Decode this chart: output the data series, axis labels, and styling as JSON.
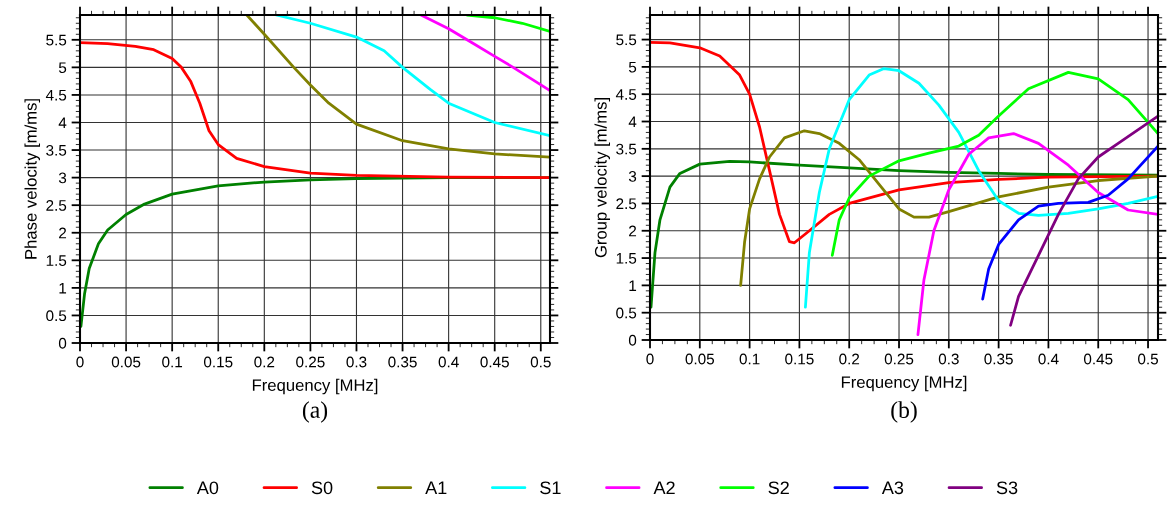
{
  "chart_data": [
    {
      "type": "line",
      "xlabel": "Frequency [MHz]",
      "ylabel": "Phase velocity [m/ms]",
      "annotations": [
        "(a)"
      ],
      "xlim": [
        0,
        0.51
      ],
      "ylim": [
        0,
        5.95
      ],
      "xticks": [
        0,
        0.05,
        0.1,
        0.15,
        0.2,
        0.25,
        0.3,
        0.35,
        0.4,
        0.45,
        0.5
      ],
      "yticks": [
        0,
        0.5,
        1,
        1.5,
        2,
        2.5,
        3,
        3.5,
        4,
        4.5,
        5,
        5.5
      ],
      "grid": true,
      "legend": "bottom",
      "marker": "none",
      "line_style": "solid",
      "series": [
        {
          "name": "A0",
          "color": "#008000",
          "x": [
            0.001,
            0.005,
            0.01,
            0.02,
            0.03,
            0.05,
            0.07,
            0.1,
            0.15,
            0.2,
            0.25,
            0.3,
            0.35,
            0.4,
            0.51
          ],
          "values": [
            0.3,
            0.9,
            1.35,
            1.8,
            2.05,
            2.33,
            2.52,
            2.7,
            2.85,
            2.92,
            2.96,
            2.98,
            2.99,
            3.0,
            3.0
          ]
        },
        {
          "name": "S0",
          "color": "#ff0000",
          "x": [
            0,
            0.03,
            0.06,
            0.08,
            0.1,
            0.11,
            0.12,
            0.13,
            0.14,
            0.15,
            0.17,
            0.2,
            0.25,
            0.3,
            0.4,
            0.51
          ],
          "values": [
            5.45,
            5.43,
            5.38,
            5.32,
            5.16,
            5.0,
            4.75,
            4.35,
            3.85,
            3.6,
            3.35,
            3.2,
            3.08,
            3.04,
            3.01,
            3.0
          ]
        },
        {
          "name": "A1",
          "color": "#808000",
          "x": [
            0.181,
            0.2,
            0.232,
            0.25,
            0.27,
            0.3,
            0.35,
            0.4,
            0.45,
            0.51
          ],
          "values": [
            5.95,
            5.6,
            5.0,
            4.68,
            4.35,
            3.97,
            3.67,
            3.52,
            3.43,
            3.37
          ]
        },
        {
          "name": "S1",
          "color": "#00ffff",
          "x": [
            0.213,
            0.25,
            0.3,
            0.33,
            0.35,
            0.38,
            0.4,
            0.45,
            0.51
          ],
          "values": [
            5.95,
            5.8,
            5.55,
            5.3,
            5.0,
            4.6,
            4.35,
            4.0,
            3.76
          ]
        },
        {
          "name": "A2",
          "color": "#ff00ff",
          "x": [
            0.37,
            0.4,
            0.425,
            0.45,
            0.47,
            0.51
          ],
          "values": [
            5.95,
            5.7,
            5.45,
            5.2,
            5.0,
            4.58
          ]
        },
        {
          "name": "S2",
          "color": "#00ff00",
          "x": [
            0.42,
            0.45,
            0.48,
            0.51
          ],
          "values": [
            5.95,
            5.9,
            5.8,
            5.65
          ]
        }
      ]
    },
    {
      "type": "line",
      "xlabel": "Frequency [MHz]",
      "ylabel": "Group velocity [m/ms]",
      "annotations": [
        "(b)"
      ],
      "xlim": [
        0,
        0.51
      ],
      "ylim": [
        0,
        5.95
      ],
      "xticks": [
        0,
        0.05,
        0.1,
        0.15,
        0.2,
        0.25,
        0.3,
        0.35,
        0.4,
        0.45,
        0.5
      ],
      "yticks": [
        0,
        0.5,
        1,
        1.5,
        2,
        2.5,
        3,
        3.5,
        4,
        4.5,
        5,
        5.5
      ],
      "grid": true,
      "legend": "bottom",
      "marker": "none",
      "line_style": "solid",
      "series": [
        {
          "name": "A0",
          "color": "#008000",
          "x": [
            0.001,
            0.005,
            0.01,
            0.02,
            0.03,
            0.05,
            0.08,
            0.1,
            0.15,
            0.2,
            0.25,
            0.3,
            0.35,
            0.4,
            0.51
          ],
          "values": [
            0.6,
            1.6,
            2.2,
            2.8,
            3.05,
            3.22,
            3.27,
            3.26,
            3.2,
            3.15,
            3.1,
            3.07,
            3.05,
            3.03,
            3.02
          ]
        },
        {
          "name": "S0",
          "color": "#ff0000",
          "x": [
            0,
            0.02,
            0.05,
            0.07,
            0.09,
            0.1,
            0.11,
            0.12,
            0.13,
            0.14,
            0.145,
            0.16,
            0.18,
            0.2,
            0.25,
            0.3,
            0.35,
            0.4,
            0.51
          ],
          "values": [
            5.45,
            5.44,
            5.35,
            5.2,
            4.85,
            4.5,
            3.9,
            3.1,
            2.3,
            1.8,
            1.78,
            2.0,
            2.3,
            2.5,
            2.75,
            2.88,
            2.94,
            2.98,
            3.0
          ]
        },
        {
          "name": "A1",
          "color": "#808000",
          "x": [
            0.091,
            0.095,
            0.1,
            0.11,
            0.12,
            0.135,
            0.155,
            0.17,
            0.19,
            0.21,
            0.23,
            0.25,
            0.265,
            0.28,
            0.3,
            0.35,
            0.4,
            0.45,
            0.51
          ],
          "values": [
            1.0,
            1.8,
            2.4,
            2.95,
            3.35,
            3.7,
            3.83,
            3.78,
            3.6,
            3.3,
            2.85,
            2.4,
            2.25,
            2.25,
            2.35,
            2.62,
            2.8,
            2.92,
            3.0
          ]
        },
        {
          "name": "S1",
          "color": "#00ffff",
          "x": [
            0.156,
            0.16,
            0.17,
            0.18,
            0.2,
            0.22,
            0.235,
            0.25,
            0.27,
            0.29,
            0.31,
            0.33,
            0.35,
            0.37,
            0.39,
            0.42,
            0.45,
            0.48,
            0.51
          ],
          "values": [
            0.6,
            1.6,
            2.7,
            3.5,
            4.4,
            4.85,
            4.97,
            4.93,
            4.7,
            4.3,
            3.8,
            3.1,
            2.55,
            2.32,
            2.28,
            2.32,
            2.4,
            2.5,
            2.63
          ]
        },
        {
          "name": "A2",
          "color": "#ff00ff",
          "x": [
            0.269,
            0.275,
            0.285,
            0.3,
            0.32,
            0.34,
            0.365,
            0.39,
            0.42,
            0.45,
            0.48,
            0.51
          ],
          "values": [
            0.1,
            1.1,
            2.0,
            2.75,
            3.4,
            3.7,
            3.78,
            3.6,
            3.2,
            2.7,
            2.38,
            2.3
          ]
        },
        {
          "name": "S2",
          "color": "#00ff00",
          "x": [
            0.183,
            0.19,
            0.2,
            0.22,
            0.25,
            0.28,
            0.31,
            0.33,
            0.35,
            0.38,
            0.42,
            0.45,
            0.48,
            0.51
          ],
          "values": [
            1.55,
            2.2,
            2.6,
            3.0,
            3.28,
            3.42,
            3.55,
            3.75,
            4.1,
            4.6,
            4.9,
            4.78,
            4.4,
            3.78
          ]
        },
        {
          "name": "A3",
          "color": "#0000ff",
          "x": [
            0.334,
            0.34,
            0.35,
            0.37,
            0.39,
            0.41,
            0.44,
            0.46,
            0.48,
            0.51
          ],
          "values": [
            0.75,
            1.3,
            1.75,
            2.2,
            2.45,
            2.5,
            2.52,
            2.65,
            2.95,
            3.55
          ]
        },
        {
          "name": "S3",
          "color": "#800080",
          "x": [
            0.362,
            0.37,
            0.39,
            0.41,
            0.43,
            0.45,
            0.47,
            0.51
          ],
          "values": [
            0.27,
            0.8,
            1.55,
            2.3,
            2.95,
            3.35,
            3.6,
            4.1
          ]
        }
      ]
    }
  ]
}
